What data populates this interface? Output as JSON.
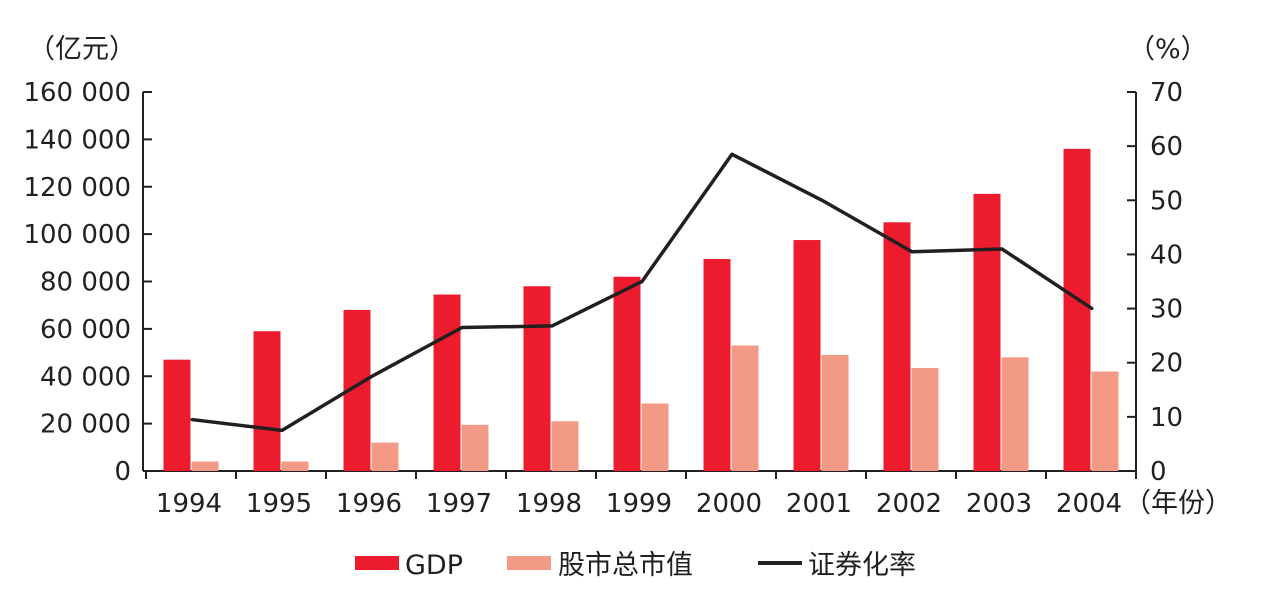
{
  "chart_data": {
    "type": "bar",
    "categories": [
      "1994",
      "1995",
      "1996",
      "1997",
      "1998",
      "1999",
      "2000",
      "2001",
      "2002",
      "2003",
      "2004"
    ],
    "series": [
      {
        "name": "GDP",
        "kind": "bar",
        "axis": "left",
        "color": "#ec1c2e",
        "values": [
          47000,
          59000,
          68000,
          74500,
          78000,
          82000,
          89500,
          97500,
          105000,
          117000,
          136000
        ]
      },
      {
        "name": "股市总市值",
        "kind": "bar",
        "axis": "left",
        "color": "#f39a86",
        "values": [
          4000,
          4000,
          12000,
          19500,
          21000,
          28500,
          53000,
          49000,
          43500,
          48000,
          42000
        ]
      },
      {
        "name": "证券化率",
        "kind": "line",
        "axis": "right",
        "color": "#231f20",
        "values": [
          9.5,
          7.5,
          17.5,
          26.5,
          26.8,
          35,
          58.5,
          50,
          40.5,
          41,
          30
        ]
      }
    ],
    "left_unit": "（亿元）",
    "right_unit": "（%）",
    "x_unit": "（年份）",
    "left_ticks": [
      "0",
      "20 000",
      "40 000",
      "60 000",
      "80 000",
      "100 000",
      "120 000",
      "140 000",
      "160 000"
    ],
    "right_ticks": [
      "0",
      "10",
      "20",
      "30",
      "40",
      "50",
      "60",
      "70"
    ],
    "left_ylim": [
      0,
      160000
    ],
    "right_ylim": [
      0,
      70
    ],
    "grid": false,
    "legend_position": "bottom-center"
  }
}
